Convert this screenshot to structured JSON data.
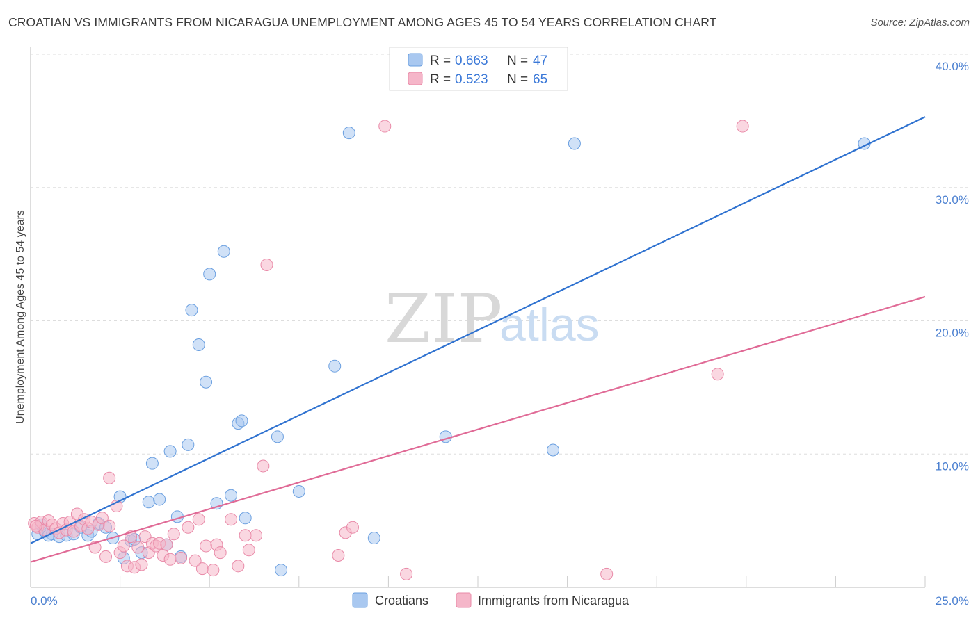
{
  "header": {
    "title": "CROATIAN VS IMMIGRANTS FROM NICARAGUA UNEMPLOYMENT AMONG AGES 45 TO 54 YEARS CORRELATION CHART",
    "source": "Source: ZipAtlas.com"
  },
  "watermark": {
    "zip": "ZIP",
    "atlas": "atlas"
  },
  "colors": {
    "blue_fill": "#a9c8f0",
    "blue_stroke": "#6a9fe0",
    "blue_line": "#2f72d0",
    "pink_fill": "#f5b6c9",
    "pink_stroke": "#e98aa8",
    "pink_line": "#e06a96",
    "tick_text": "#4a7fd0",
    "grid": "#dddddd"
  },
  "legend": {
    "r_label": "R =",
    "n_label": "N =",
    "series": [
      {
        "r": "0.663",
        "n": "47"
      },
      {
        "r": "0.523",
        "n": "65"
      }
    ]
  },
  "chart_data": {
    "type": "scatter",
    "title": "CROATIAN VS IMMIGRANTS FROM NICARAGUA UNEMPLOYMENT AMONG AGES 45 TO 54 YEARS CORRELATION CHART",
    "xlabel": "",
    "ylabel": "Unemployment Among Ages 45 to 54 years",
    "xlim": [
      0,
      25
    ],
    "ylim": [
      0,
      40
    ],
    "x_tick_labels": [
      "0.0%",
      "25.0%"
    ],
    "y_ticks": [
      10,
      20,
      30,
      40
    ],
    "y_tick_labels": [
      "10.0%",
      "20.0%",
      "30.0%",
      "40.0%"
    ],
    "legend_position": "top-center",
    "series": [
      {
        "name": "Croatians",
        "r": 0.663,
        "n": 47,
        "trend": {
          "x": [
            0,
            25
          ],
          "y": [
            3.3,
            35.3
          ]
        },
        "points": [
          [
            0.2,
            4.0
          ],
          [
            0.4,
            4.2
          ],
          [
            0.6,
            4.0
          ],
          [
            0.8,
            3.8
          ],
          [
            1.0,
            3.9
          ],
          [
            1.2,
            4.0
          ],
          [
            1.4,
            4.5
          ],
          [
            1.6,
            3.9
          ],
          [
            1.9,
            4.8
          ],
          [
            2.1,
            4.5
          ],
          [
            2.3,
            3.7
          ],
          [
            2.5,
            6.8
          ],
          [
            2.6,
            2.2
          ],
          [
            2.8,
            3.5
          ],
          [
            2.9,
            3.6
          ],
          [
            3.1,
            2.6
          ],
          [
            3.3,
            6.4
          ],
          [
            3.4,
            9.3
          ],
          [
            3.6,
            6.6
          ],
          [
            3.8,
            3.2
          ],
          [
            3.9,
            10.2
          ],
          [
            4.1,
            5.3
          ],
          [
            4.2,
            2.3
          ],
          [
            4.4,
            10.7
          ],
          [
            4.5,
            20.8
          ],
          [
            4.7,
            18.2
          ],
          [
            4.9,
            15.4
          ],
          [
            5.0,
            23.5
          ],
          [
            5.2,
            6.3
          ],
          [
            5.4,
            25.2
          ],
          [
            5.6,
            6.9
          ],
          [
            5.8,
            12.3
          ],
          [
            5.9,
            12.5
          ],
          [
            6.0,
            5.2
          ],
          [
            6.9,
            11.3
          ],
          [
            7.0,
            1.3
          ],
          [
            7.5,
            7.2
          ],
          [
            8.5,
            16.6
          ],
          [
            8.9,
            34.1
          ],
          [
            9.6,
            3.7
          ],
          [
            11.6,
            11.3
          ],
          [
            14.6,
            10.3
          ],
          [
            15.2,
            33.3
          ],
          [
            23.3,
            33.3
          ],
          [
            0.3,
            4.7
          ],
          [
            0.5,
            3.9
          ],
          [
            1.7,
            4.2
          ]
        ]
      },
      {
        "name": "Immigrants from Nicaragua",
        "r": 0.523,
        "n": 65,
        "trend": {
          "x": [
            0,
            25
          ],
          "y": [
            1.9,
            21.8
          ]
        },
        "points": [
          [
            0.1,
            4.8
          ],
          [
            0.2,
            4.5
          ],
          [
            0.3,
            4.9
          ],
          [
            0.4,
            4.3
          ],
          [
            0.5,
            5.0
          ],
          [
            0.6,
            4.7
          ],
          [
            0.7,
            4.4
          ],
          [
            0.8,
            4.1
          ],
          [
            0.9,
            4.8
          ],
          [
            1.0,
            4.3
          ],
          [
            1.1,
            4.9
          ],
          [
            1.2,
            4.2
          ],
          [
            1.3,
            5.5
          ],
          [
            1.4,
            4.6
          ],
          [
            1.5,
            5.1
          ],
          [
            1.6,
            4.4
          ],
          [
            1.7,
            4.9
          ],
          [
            1.8,
            3.0
          ],
          [
            1.9,
            4.7
          ],
          [
            2.0,
            5.2
          ],
          [
            2.1,
            2.3
          ],
          [
            2.2,
            4.6
          ],
          [
            2.2,
            8.2
          ],
          [
            2.4,
            6.1
          ],
          [
            2.5,
            2.6
          ],
          [
            2.6,
            3.1
          ],
          [
            2.7,
            1.6
          ],
          [
            2.8,
            3.8
          ],
          [
            2.9,
            1.5
          ],
          [
            3.0,
            3.0
          ],
          [
            3.1,
            1.7
          ],
          [
            3.2,
            3.8
          ],
          [
            3.3,
            2.6
          ],
          [
            3.4,
            3.3
          ],
          [
            3.5,
            3.1
          ],
          [
            3.6,
            3.3
          ],
          [
            3.7,
            2.4
          ],
          [
            3.8,
            3.2
          ],
          [
            3.9,
            2.1
          ],
          [
            4.0,
            4.0
          ],
          [
            4.2,
            2.2
          ],
          [
            4.4,
            4.5
          ],
          [
            4.6,
            2.0
          ],
          [
            4.7,
            5.1
          ],
          [
            4.8,
            1.4
          ],
          [
            4.9,
            3.1
          ],
          [
            5.1,
            1.3
          ],
          [
            5.2,
            3.2
          ],
          [
            5.3,
            2.6
          ],
          [
            5.6,
            5.1
          ],
          [
            5.8,
            1.6
          ],
          [
            6.0,
            3.9
          ],
          [
            6.1,
            2.8
          ],
          [
            6.3,
            3.9
          ],
          [
            6.5,
            9.1
          ],
          [
            6.6,
            24.2
          ],
          [
            8.6,
            2.4
          ],
          [
            8.8,
            4.1
          ],
          [
            9.0,
            4.5
          ],
          [
            9.9,
            34.6
          ],
          [
            10.5,
            1.0
          ],
          [
            16.1,
            1.0
          ],
          [
            19.2,
            16.0
          ],
          [
            19.9,
            34.6
          ],
          [
            0.15,
            4.6
          ]
        ]
      }
    ]
  },
  "bottom_legend": {
    "items": [
      "Croatians",
      "Immigrants from Nicaragua"
    ]
  }
}
